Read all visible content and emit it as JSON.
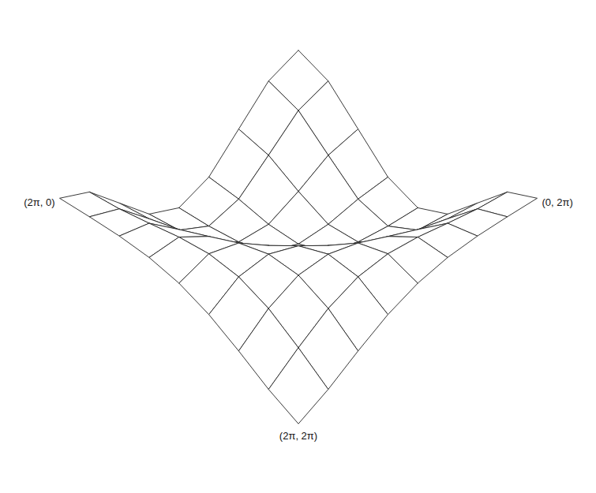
{
  "chart_data": {
    "type": "surface",
    "x": [
      0,
      0.785,
      1.571,
      2.356,
      3.142,
      3.927,
      4.712,
      5.498,
      6.283
    ],
    "y": [
      0,
      0.785,
      1.571,
      2.356,
      3.142,
      3.927,
      4.712,
      5.498,
      6.283
    ],
    "z": [
      [
        1,
        0.707,
        0,
        -0.707,
        -1,
        -0.707,
        0,
        0.707,
        1
      ],
      [
        0.707,
        0.444,
        -0.184,
        -0.791,
        -0.995,
        -0.649,
        0.065,
        0.746,
        0.999
      ],
      [
        0,
        -0.184,
        -0.606,
        -0.952,
        -0.932,
        -0.465,
        0.252,
        0.844,
        0.981
      ],
      [
        -0.707,
        -0.791,
        -0.952,
        -0.982,
        -0.707,
        -0.132,
        0.528,
        0.955,
        0.91
      ],
      [
        -1,
        -0.995,
        -0.932,
        -0.707,
        -0.266,
        0.311,
        0.814,
        0.999,
        0.737
      ],
      [
        -0.707,
        -0.649,
        -0.465,
        -0.132,
        0.311,
        0.746,
        0.989,
        0.89,
        0.43
      ],
      [
        0,
        0.065,
        0.252,
        0.528,
        0.814,
        0.989,
        0.928,
        0.575,
        0
      ],
      [
        0.707,
        0.746,
        0.844,
        0.955,
        0.999,
        0.89,
        0.575,
        0.078,
        -0.476
      ],
      [
        1,
        0.999,
        0.981,
        0.91,
        0.737,
        0.43,
        0,
        -0.476,
        -0.858
      ]
    ],
    "annotations": [
      {
        "text": "(2π, 0)",
        "x": 6.283,
        "y": 0
      },
      {
        "text": "(0, 2π)",
        "x": 0,
        "y": 6.283
      },
      {
        "text": "(2π, 2π)",
        "x": 6.283,
        "y": 6.283
      }
    ],
    "color": "#222222",
    "tick_labels": false
  }
}
